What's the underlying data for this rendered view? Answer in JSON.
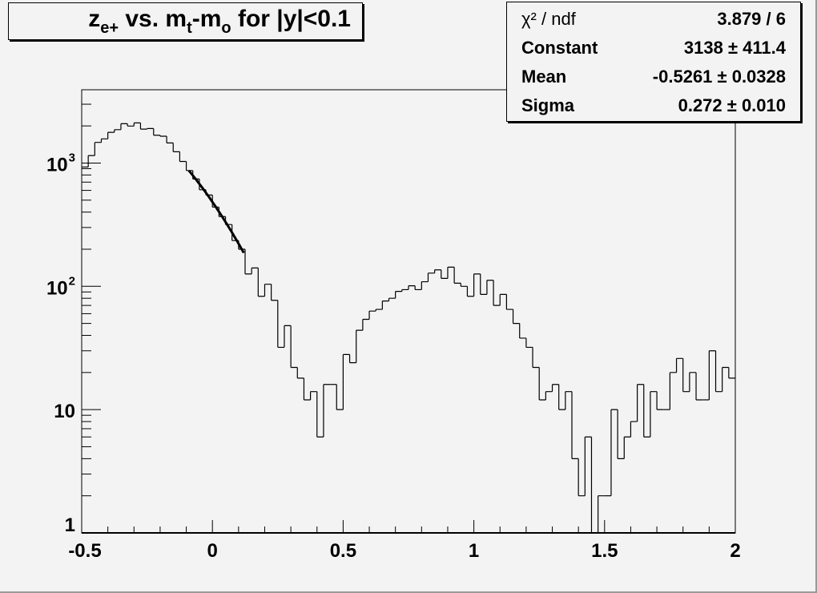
{
  "chart_data": {
    "type": "histogram",
    "title": "z_{e+} vs. m_t-m_o for |y|<0.1",
    "title_parts": {
      "z": "z",
      "z_sub": "e+",
      "mid": " vs. m",
      "mt_sub": "t",
      "dash": "-m",
      "mo_sub": "o",
      "tail": " for |y|<0.1"
    },
    "xlabel": "",
    "ylabel": "",
    "xlim": [
      -0.5,
      2
    ],
    "ylim": [
      1,
      3930
    ],
    "y_scale": "log",
    "grid": false,
    "bin_width": 0.025,
    "x_tick_labels": [
      "-0.5",
      "0",
      "0.5",
      "1",
      "1.5",
      "2"
    ],
    "x_tick_values": [
      -0.5,
      0,
      0.5,
      1,
      1.5,
      2
    ],
    "y_tick_labels": [
      {
        "value": 1,
        "base": "1",
        "exp": ""
      },
      {
        "value": 10,
        "base": "10",
        "exp": ""
      },
      {
        "value": 100,
        "base": "10",
        "exp": "2"
      },
      {
        "value": 1000,
        "base": "10",
        "exp": "3"
      }
    ],
    "values": [
      928,
      1150,
      1470,
      1570,
      1775,
      1865,
      2085,
      1995,
      2115,
      1885,
      1905,
      1680,
      1650,
      1455,
      1235,
      1030,
      869,
      742,
      607,
      550,
      439,
      368,
      317,
      235,
      200,
      126,
      141,
      83,
      104,
      77,
      32,
      48,
      22,
      18,
      12,
      14,
      6,
      16,
      16,
      10,
      28,
      24,
      44,
      54,
      63,
      65,
      76,
      80,
      91,
      94,
      101,
      94,
      109,
      128,
      136,
      116,
      143,
      106,
      100,
      83,
      126,
      86,
      112,
      70,
      86,
      65,
      50,
      38,
      32,
      22,
      12,
      14,
      16,
      10,
      14,
      4,
      2,
      6,
      0,
      2,
      2,
      10,
      4,
      6,
      8,
      16,
      6,
      14,
      10,
      10,
      20,
      26,
      14,
      20,
      12,
      12,
      30,
      14,
      22,
      18
    ],
    "fit": {
      "function": "gaus",
      "constant": 3138,
      "mean": -0.5261,
      "sigma": 0.272,
      "range": [
        -0.09,
        0.12
      ]
    },
    "stats": [
      {
        "label": "χ² / ndf",
        "value": "3.879 / 6"
      },
      {
        "label": "Constant",
        "value": "3138 ± 411.4"
      },
      {
        "label": "Mean",
        "value": "-0.5261 ± 0.0328"
      },
      {
        "label": "Sigma",
        "value": "0.272 ± 0.010"
      }
    ],
    "legend_placement": "top-right"
  },
  "colors": {
    "background": "#f3f3f3",
    "line": "#000000"
  }
}
